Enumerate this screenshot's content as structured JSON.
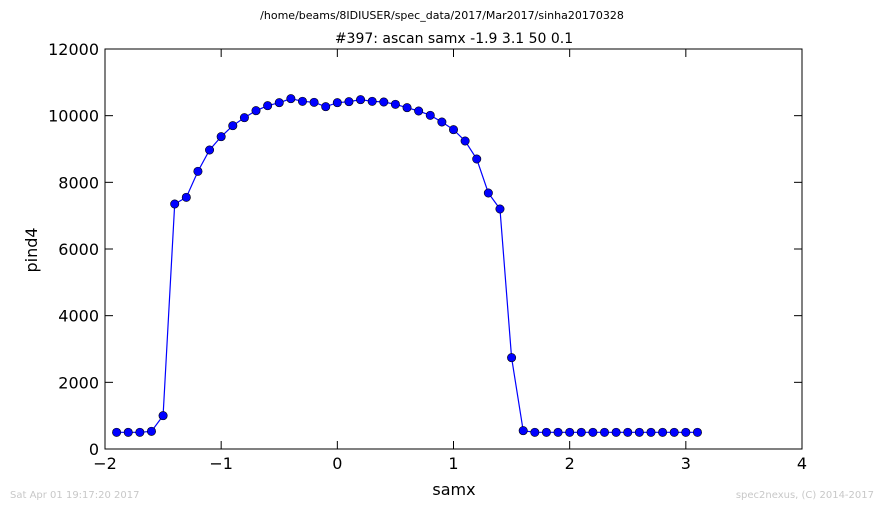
{
  "header": {
    "suptitle": "/home/beams/8IDIUSER/spec_data/2017/Mar2017/sinha20170328",
    "title": "#397: ascan  samx -1.9 3.1  50 0.1"
  },
  "footer": {
    "timestamp": "Sat Apr 01 19:17:20 2017",
    "credit": "spec2nexus, (C) 2014-2017"
  },
  "colors": {
    "series": "#0000ff",
    "axes": "#000000",
    "footer_text": "#c8c8c8"
  },
  "chart_data": {
    "type": "line",
    "marker": "circle",
    "xlabel": "samx",
    "ylabel": "pind4",
    "xlim": [
      -2,
      4
    ],
    "ylim": [
      0,
      12000
    ],
    "xticks": [
      -2,
      -1,
      0,
      1,
      2,
      3,
      4
    ],
    "xtick_labels": [
      "−2",
      "−1",
      "0",
      "1",
      "2",
      "3",
      "4"
    ],
    "yticks": [
      0,
      2000,
      4000,
      6000,
      8000,
      10000,
      12000
    ],
    "ytick_labels": [
      "0",
      "2000",
      "4000",
      "6000",
      "8000",
      "10000",
      "12000"
    ],
    "grid": false,
    "series": [
      {
        "x": [
          -1.9,
          -1.8,
          -1.7,
          -1.6,
          -1.5,
          -1.4,
          -1.3,
          -1.2,
          -1.1,
          -1.0,
          -0.9,
          -0.8,
          -0.7,
          -0.6,
          -0.5,
          -0.4,
          -0.3,
          -0.2,
          -0.1,
          0.0,
          0.1,
          0.2,
          0.3,
          0.4,
          0.5,
          0.6,
          0.7,
          0.8,
          0.9,
          1.0,
          1.1,
          1.2,
          1.3,
          1.4,
          1.5,
          1.6,
          1.7,
          1.8,
          1.9,
          2.0,
          2.1,
          2.2,
          2.3,
          2.4,
          2.5,
          2.6,
          2.7,
          2.8,
          2.9,
          3.0,
          3.1
        ],
        "y": [
          500,
          500,
          500,
          530,
          1000,
          7350,
          7550,
          8330,
          8970,
          9370,
          9700,
          9940,
          10150,
          10300,
          10390,
          10510,
          10430,
          10400,
          10270,
          10390,
          10420,
          10480,
          10430,
          10410,
          10340,
          10240,
          10140,
          10010,
          9810,
          9580,
          9240,
          8700,
          7680,
          7200,
          2740,
          550,
          500,
          500,
          500,
          500,
          500,
          500,
          500,
          500,
          500,
          500,
          500,
          500,
          500,
          500,
          500
        ]
      }
    ]
  }
}
